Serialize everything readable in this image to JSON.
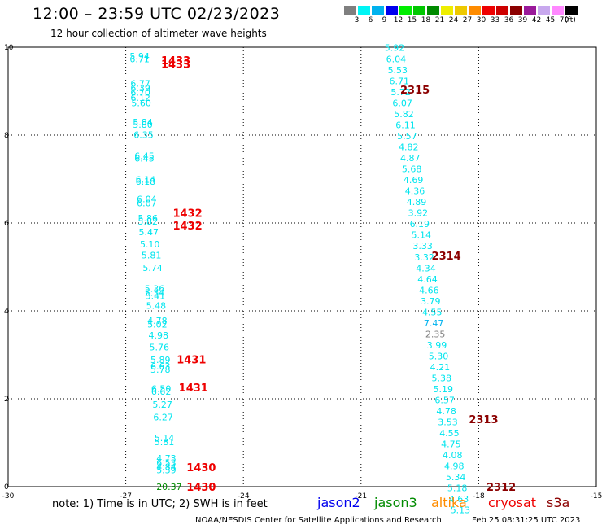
{
  "header": {
    "title": "12:00 – 23:59 UTC 02/23/2023",
    "subtitle": "12 hour collection of altimeter wave heights"
  },
  "colorbar": {
    "unit": "(ft)",
    "entries": [
      {
        "label": "3",
        "color": "#7f7f7f"
      },
      {
        "label": "6",
        "color": "#00f5f5"
      },
      {
        "label": "9",
        "color": "#00b2ee"
      },
      {
        "label": "12",
        "color": "#0000ee"
      },
      {
        "label": "15",
        "color": "#00ee00"
      },
      {
        "label": "18",
        "color": "#00c800"
      },
      {
        "label": "21",
        "color": "#008b00"
      },
      {
        "label": "24",
        "color": "#eeee00"
      },
      {
        "label": "27",
        "color": "#eec900"
      },
      {
        "label": "30",
        "color": "#ff8c00"
      },
      {
        "label": "33",
        "color": "#ee0000"
      },
      {
        "label": "36",
        "color": "#cd0000"
      },
      {
        "label": "39",
        "color": "#8b0000"
      },
      {
        "label": "42",
        "color": "#9a1a9a"
      },
      {
        "label": "45",
        "color": "#c8a8ee"
      },
      {
        "label": "70",
        "color": "#ff88ff"
      },
      {
        "label": "",
        "color": "#000000"
      }
    ]
  },
  "chart_data": {
    "type": "scatter",
    "xlim": [
      -30,
      -15
    ],
    "ylim": [
      0,
      10
    ],
    "x_ticks": [
      "-30",
      "-27",
      "-24",
      "-21",
      "-18",
      "-15"
    ],
    "y_ticks": [
      "0",
      "2",
      "4",
      "6",
      "8",
      "10"
    ],
    "grid": true,
    "swh_points": [
      {
        "x": -26.9,
        "y": 9.8,
        "v": "5.94",
        "c": "#00e5ee"
      },
      {
        "x": -26.9,
        "y": 9.73,
        "v": "6.71",
        "c": "#00e5ee"
      },
      {
        "x": -26.88,
        "y": 9.18,
        "v": "6.77",
        "c": "#00e5ee"
      },
      {
        "x": -26.88,
        "y": 9.07,
        "v": "6.39",
        "c": "#00e5ee"
      },
      {
        "x": -26.88,
        "y": 8.97,
        "v": "6.70",
        "c": "#00e5ee"
      },
      {
        "x": -26.88,
        "y": 8.85,
        "v": "6.12",
        "c": "#00e5ee"
      },
      {
        "x": -26.86,
        "y": 8.73,
        "v": "5.60",
        "c": "#00e5ee"
      },
      {
        "x": -26.82,
        "y": 8.3,
        "v": "5.84",
        "c": "#00e5ee"
      },
      {
        "x": -26.82,
        "y": 8.24,
        "v": "5.80",
        "c": "#00e5ee"
      },
      {
        "x": -26.8,
        "y": 8.01,
        "v": "6.35",
        "c": "#00e5ee"
      },
      {
        "x": -26.78,
        "y": 7.53,
        "v": "6.45",
        "c": "#00e5ee"
      },
      {
        "x": -26.78,
        "y": 7.47,
        "v": "6.45",
        "c": "#00e5ee"
      },
      {
        "x": -26.75,
        "y": 6.99,
        "v": "6.14",
        "c": "#00e5ee"
      },
      {
        "x": -26.75,
        "y": 6.94,
        "v": "6.18",
        "c": "#00e5ee"
      },
      {
        "x": -26.72,
        "y": 6.55,
        "v": "6.04",
        "c": "#00e5ee"
      },
      {
        "x": -26.72,
        "y": 6.45,
        "v": "6.07",
        "c": "#00e5ee"
      },
      {
        "x": -26.69,
        "y": 6.11,
        "v": "5.86",
        "c": "#00e5ee"
      },
      {
        "x": -26.69,
        "y": 6.04,
        "v": "5.82",
        "c": "#00e5ee"
      },
      {
        "x": -26.67,
        "y": 5.8,
        "v": "5.47",
        "c": "#00e5ee"
      },
      {
        "x": -26.64,
        "y": 5.52,
        "v": "5.10",
        "c": "#00e5ee"
      },
      {
        "x": -26.6,
        "y": 5.27,
        "v": "5.81",
        "c": "#00e5ee"
      },
      {
        "x": -26.57,
        "y": 4.98,
        "v": "5.74",
        "c": "#00e5ee"
      },
      {
        "x": -26.52,
        "y": 4.51,
        "v": "5.36",
        "c": "#00e5ee"
      },
      {
        "x": -26.52,
        "y": 4.42,
        "v": "5.34",
        "c": "#00e5ee"
      },
      {
        "x": -26.5,
        "y": 4.34,
        "v": "5.41",
        "c": "#00e5ee"
      },
      {
        "x": -26.48,
        "y": 4.12,
        "v": "5.48",
        "c": "#00e5ee"
      },
      {
        "x": -26.45,
        "y": 3.78,
        "v": "4.78",
        "c": "#00e5ee"
      },
      {
        "x": -26.45,
        "y": 3.69,
        "v": "5.02",
        "c": "#00e5ee"
      },
      {
        "x": -26.42,
        "y": 3.44,
        "v": "4.98",
        "c": "#00e5ee"
      },
      {
        "x": -26.4,
        "y": 3.18,
        "v": "5.76",
        "c": "#00e5ee"
      },
      {
        "x": -26.37,
        "y": 2.89,
        "v": "5.89",
        "c": "#00e5ee"
      },
      {
        "x": -26.37,
        "y": 2.74,
        "v": "6.63",
        "c": "#00e5ee"
      },
      {
        "x": -26.37,
        "y": 2.67,
        "v": "5.78",
        "c": "#00e5ee"
      },
      {
        "x": -26.35,
        "y": 2.23,
        "v": "6.50",
        "c": "#00e5ee"
      },
      {
        "x": -26.35,
        "y": 2.17,
        "v": "6.62",
        "c": "#00e5ee"
      },
      {
        "x": -26.32,
        "y": 1.87,
        "v": "5.27",
        "c": "#00e5ee"
      },
      {
        "x": -26.3,
        "y": 1.58,
        "v": "6.27",
        "c": "#00e5ee"
      },
      {
        "x": -26.27,
        "y": 1.11,
        "v": "5.14",
        "c": "#00e5ee"
      },
      {
        "x": -26.27,
        "y": 1.02,
        "v": "5.81",
        "c": "#00e5ee"
      },
      {
        "x": -26.22,
        "y": 0.65,
        "v": "4.73",
        "c": "#00e5ee"
      },
      {
        "x": -26.22,
        "y": 0.55,
        "v": "6.53",
        "c": "#00e5ee"
      },
      {
        "x": -26.22,
        "y": 0.45,
        "v": "4.84",
        "c": "#00e5ee"
      },
      {
        "x": -26.22,
        "y": 0.38,
        "v": "5.39",
        "c": "#00e5ee"
      },
      {
        "x": -26.22,
        "y": 0.0,
        "v": "20.37",
        "c": "#008b00"
      },
      {
        "x": -20.4,
        "y": 9.99,
        "v": "5.92",
        "c": "#00e5ee"
      },
      {
        "x": -20.36,
        "y": 9.73,
        "v": "6.04",
        "c": "#00e5ee"
      },
      {
        "x": -20.32,
        "y": 9.48,
        "v": "5.53",
        "c": "#00e5ee"
      },
      {
        "x": -20.28,
        "y": 9.23,
        "v": "6.71",
        "c": "#00e5ee"
      },
      {
        "x": -20.24,
        "y": 8.98,
        "v": "5.72",
        "c": "#00e5ee"
      },
      {
        "x": -20.2,
        "y": 8.73,
        "v": "6.07",
        "c": "#00e5ee"
      },
      {
        "x": -20.16,
        "y": 8.48,
        "v": "5.82",
        "c": "#00e5ee"
      },
      {
        "x": -20.12,
        "y": 8.23,
        "v": "6.11",
        "c": "#00e5ee"
      },
      {
        "x": -20.08,
        "y": 7.98,
        "v": "5.57",
        "c": "#00e5ee"
      },
      {
        "x": -20.04,
        "y": 7.73,
        "v": "4.82",
        "c": "#00e5ee"
      },
      {
        "x": -20.0,
        "y": 7.48,
        "v": "4.87",
        "c": "#00e5ee"
      },
      {
        "x": -19.96,
        "y": 7.23,
        "v": "5.68",
        "c": "#00e5ee"
      },
      {
        "x": -19.92,
        "y": 6.98,
        "v": "4.69",
        "c": "#00e5ee"
      },
      {
        "x": -19.88,
        "y": 6.73,
        "v": "4.36",
        "c": "#00e5ee"
      },
      {
        "x": -19.84,
        "y": 6.48,
        "v": "4.89",
        "c": "#00e5ee"
      },
      {
        "x": -19.8,
        "y": 6.23,
        "v": "3.92",
        "c": "#00e5ee"
      },
      {
        "x": -19.76,
        "y": 5.98,
        "v": "6.19",
        "c": "#00e5ee"
      },
      {
        "x": -19.72,
        "y": 5.73,
        "v": "5.14",
        "c": "#00e5ee"
      },
      {
        "x": -19.68,
        "y": 5.48,
        "v": "3.33",
        "c": "#00e5ee"
      },
      {
        "x": -19.64,
        "y": 5.22,
        "v": "3.32",
        "c": "#00e5ee"
      },
      {
        "x": -19.6,
        "y": 4.97,
        "v": "4.34",
        "c": "#00e5ee"
      },
      {
        "x": -19.56,
        "y": 4.72,
        "v": "4.64",
        "c": "#00e5ee"
      },
      {
        "x": -19.52,
        "y": 4.47,
        "v": "4.66",
        "c": "#00e5ee"
      },
      {
        "x": -19.48,
        "y": 4.22,
        "v": "3.79",
        "c": "#00e5ee"
      },
      {
        "x": -19.44,
        "y": 3.97,
        "v": "4.55",
        "c": "#00e5ee"
      },
      {
        "x": -19.4,
        "y": 3.72,
        "v": "7.47",
        "c": "#00b2ee"
      },
      {
        "x": -19.36,
        "y": 3.47,
        "v": "2.35",
        "c": "#7f7f7f"
      },
      {
        "x": -19.32,
        "y": 3.22,
        "v": "3.99",
        "c": "#00e5ee"
      },
      {
        "x": -19.28,
        "y": 2.97,
        "v": "5.30",
        "c": "#00e5ee"
      },
      {
        "x": -19.24,
        "y": 2.72,
        "v": "4.21",
        "c": "#00e5ee"
      },
      {
        "x": -19.2,
        "y": 2.47,
        "v": "5.38",
        "c": "#00e5ee"
      },
      {
        "x": -19.16,
        "y": 2.22,
        "v": "5.19",
        "c": "#00e5ee"
      },
      {
        "x": -19.12,
        "y": 1.97,
        "v": "6.57",
        "c": "#00e5ee"
      },
      {
        "x": -19.08,
        "y": 1.72,
        "v": "4.78",
        "c": "#00e5ee"
      },
      {
        "x": -19.04,
        "y": 1.47,
        "v": "3.53",
        "c": "#00e5ee"
      },
      {
        "x": -19.0,
        "y": 1.22,
        "v": "4.55",
        "c": "#00e5ee"
      },
      {
        "x": -18.96,
        "y": 0.97,
        "v": "4.75",
        "c": "#00e5ee"
      },
      {
        "x": -18.92,
        "y": 0.72,
        "v": "4.08",
        "c": "#00e5ee"
      },
      {
        "x": -18.88,
        "y": 0.47,
        "v": "4.98",
        "c": "#00e5ee"
      },
      {
        "x": -18.84,
        "y": 0.22,
        "v": "5.34",
        "c": "#00e5ee"
      },
      {
        "x": -18.8,
        "y": -0.03,
        "v": "5.18",
        "c": "#00e5ee"
      },
      {
        "x": -18.76,
        "y": -0.28,
        "v": "4.63",
        "c": "#00e5ee"
      },
      {
        "x": -18.72,
        "y": -0.53,
        "v": "5.13",
        "c": "#00e5ee"
      }
    ],
    "time_labels": [
      {
        "x": -26.1,
        "y": 9.7,
        "v": "1433",
        "c": "#ee0000"
      },
      {
        "x": -26.1,
        "y": 9.62,
        "v": "1433",
        "c": "#ee0000"
      },
      {
        "x": -25.8,
        "y": 6.23,
        "v": "1432",
        "c": "#ee0000"
      },
      {
        "x": -25.8,
        "y": 5.94,
        "v": "1432",
        "c": "#ee0000"
      },
      {
        "x": -25.7,
        "y": 2.9,
        "v": "1431",
        "c": "#ee0000"
      },
      {
        "x": -25.65,
        "y": 2.26,
        "v": "1431",
        "c": "#ee0000"
      },
      {
        "x": -25.45,
        "y": 0.44,
        "v": "1430",
        "c": "#ee0000"
      },
      {
        "x": -25.45,
        "y": 0.0,
        "v": "1430",
        "c": "#ee0000"
      },
      {
        "x": -20.0,
        "y": 9.04,
        "v": "2315",
        "c": "#8b0000"
      },
      {
        "x": -19.2,
        "y": 5.26,
        "v": "2314",
        "c": "#8b0000"
      },
      {
        "x": -18.25,
        "y": 1.54,
        "v": "2313",
        "c": "#8b0000"
      },
      {
        "x": -17.8,
        "y": 0.0,
        "v": "2312",
        "c": "#8b0000"
      }
    ]
  },
  "footer": {
    "note": "note:  1) Time is in UTC;  2) SWH is in feet",
    "satellites": [
      {
        "name": "jason2",
        "color": "#0000ee"
      },
      {
        "name": "jason3",
        "color": "#008b00"
      },
      {
        "name": "altika",
        "color": "#ff8c00"
      },
      {
        "name": "cryosat",
        "color": "#ee0000"
      },
      {
        "name": "s3a",
        "color": "#8b0000"
      }
    ],
    "credit": "NOAA/NESDIS Center for Satellite Applications and Research",
    "timestamp": "Feb 25 08:31:25 UTC 2023"
  }
}
